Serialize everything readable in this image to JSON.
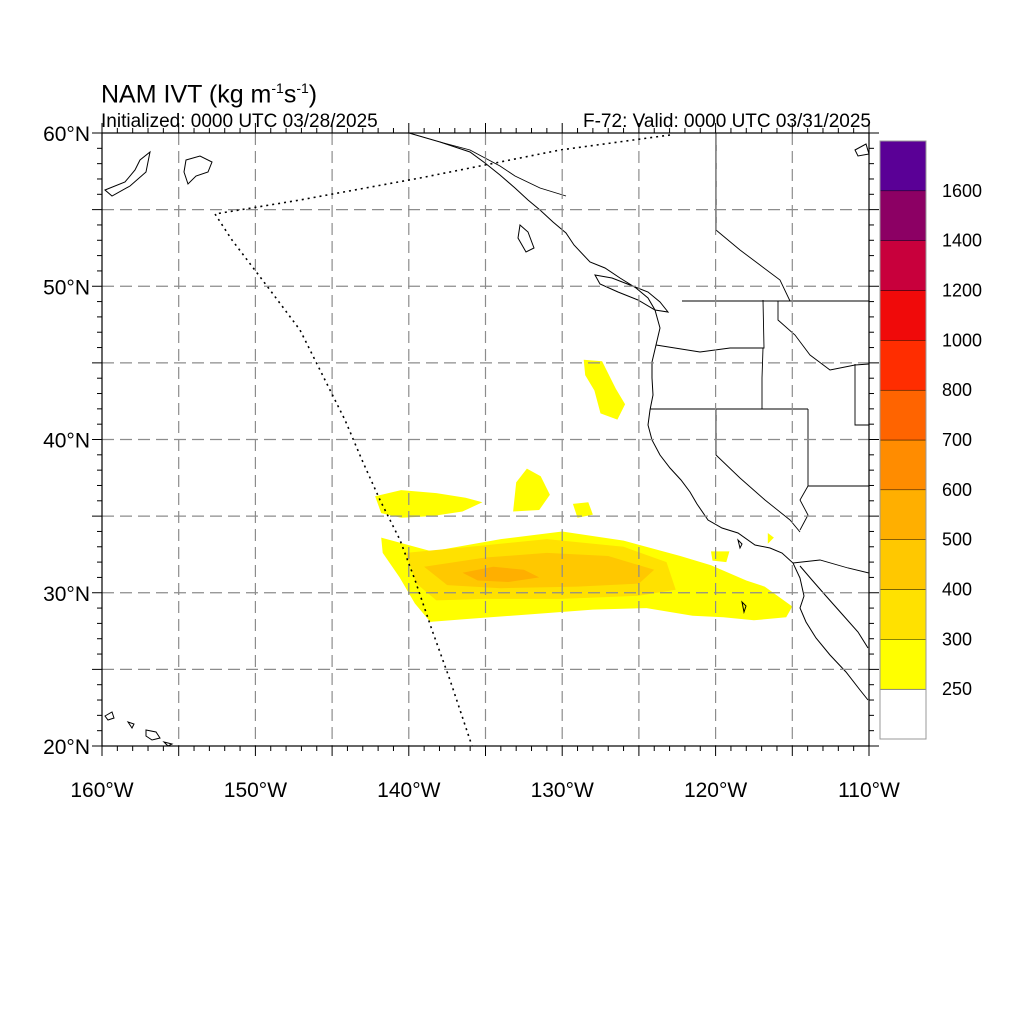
{
  "header": {
    "title_prefix": "NAM IVT (kg m",
    "title_exp1": "-1",
    "title_mid": "s",
    "title_exp2": "-1",
    "title_suffix": ")",
    "initialized": "Initialized: 0000 UTC 03/28/2025",
    "valid": "F-72: Valid: 0000 UTC 03/31/2025"
  },
  "map": {
    "lon_range": [
      -160,
      -110
    ],
    "lat_range": [
      20,
      60
    ],
    "grid": true,
    "lat_ticks": [
      {
        "lat": 60,
        "label": "60°N"
      },
      {
        "lat": 50,
        "label": "50°N"
      },
      {
        "lat": 40,
        "label": "40°N"
      },
      {
        "lat": 30,
        "label": "30°N"
      },
      {
        "lat": 20,
        "label": "20°N"
      }
    ],
    "lon_ticks": [
      {
        "lon": -160,
        "label": "160°W"
      },
      {
        "lon": -150,
        "label": "150°W"
      },
      {
        "lon": -140,
        "label": "140°W"
      },
      {
        "lon": -130,
        "label": "130°W"
      },
      {
        "lon": -120,
        "label": "120°W"
      },
      {
        "lon": -110,
        "label": "110°W"
      }
    ]
  },
  "colorbar": {
    "labels": [
      "250",
      "300",
      "400",
      "500",
      "600",
      "700",
      "800",
      "1000",
      "1200",
      "1400",
      "1600"
    ],
    "colors": [
      "#ffffff",
      "#ffff00",
      "#ffe100",
      "#ffc800",
      "#ffaf00",
      "#ff8c00",
      "#ff6400",
      "#ff2d00",
      "#f00a0a",
      "#c8003c",
      "#8c0064",
      "#5a0096"
    ]
  },
  "ivt_regions": [
    {
      "level": 1,
      "points": [
        [
          -141.8,
          33.6
        ],
        [
          -138.5,
          32.7
        ],
        [
          -134,
          33.5
        ],
        [
          -130,
          34
        ],
        [
          -126,
          33.4
        ],
        [
          -122.3,
          32.4
        ],
        [
          -120.3,
          31.8
        ],
        [
          -118,
          30.8
        ],
        [
          -116.8,
          30.4
        ],
        [
          -115,
          29.1
        ],
        [
          -115.4,
          28.4
        ],
        [
          -117.5,
          28.2
        ],
        [
          -119.5,
          28.4
        ],
        [
          -121.5,
          28.5
        ],
        [
          -124.5,
          29
        ],
        [
          -128,
          28.9
        ],
        [
          -132,
          28.6
        ],
        [
          -136,
          28.3
        ],
        [
          -138.6,
          28.1
        ],
        [
          -139.6,
          29.3
        ],
        [
          -140.6,
          31
        ],
        [
          -141.7,
          32.6
        ]
      ]
    },
    {
      "level": 2,
      "points": [
        [
          -140.2,
          32.6
        ],
        [
          -136,
          33
        ],
        [
          -131,
          33.5
        ],
        [
          -126,
          33
        ],
        [
          -123.2,
          32
        ],
        [
          -122.6,
          30.2
        ],
        [
          -125,
          29.8
        ],
        [
          -130,
          29.6
        ],
        [
          -135,
          29.6
        ],
        [
          -138.2,
          29.5
        ],
        [
          -139.5,
          30.6
        ]
      ]
    },
    {
      "level": 3,
      "points": [
        [
          -139,
          31.7
        ],
        [
          -135,
          32.3
        ],
        [
          -131,
          32.6
        ],
        [
          -127,
          32.4
        ],
        [
          -124,
          31.5
        ],
        [
          -125,
          30.6
        ],
        [
          -129,
          30.4
        ],
        [
          -134,
          30.3
        ],
        [
          -137.5,
          30.5
        ]
      ]
    },
    {
      "level": 4,
      "points": [
        [
          -136.5,
          31.3
        ],
        [
          -134.5,
          31.7
        ],
        [
          -132.5,
          31.5
        ],
        [
          -131.5,
          31
        ],
        [
          -133.5,
          30.7
        ],
        [
          -135.5,
          30.8
        ]
      ]
    },
    {
      "level": 1,
      "points": [
        [
          -142.2,
          36.3
        ],
        [
          -140.5,
          36.7
        ],
        [
          -138.2,
          36.5
        ],
        [
          -136.3,
          36.2
        ],
        [
          -135.2,
          35.9
        ],
        [
          -136.5,
          35.3
        ],
        [
          -138.5,
          35
        ],
        [
          -140.5,
          34.9
        ],
        [
          -141.8,
          35.2
        ]
      ]
    },
    {
      "level": 1,
      "points": [
        [
          -133.2,
          35.3
        ],
        [
          -131.5,
          35.4
        ],
        [
          -130.8,
          36.4
        ],
        [
          -131.4,
          37.6
        ],
        [
          -132.3,
          38.1
        ],
        [
          -133,
          37.2
        ]
      ]
    },
    {
      "level": 1,
      "points": [
        [
          -129.3,
          35.8
        ],
        [
          -128.3,
          35.9
        ],
        [
          -128,
          35.1
        ],
        [
          -129,
          34.9
        ]
      ]
    },
    {
      "level": 1,
      "points": [
        [
          -128.6,
          45.2
        ],
        [
          -127.4,
          45.1
        ],
        [
          -126.5,
          43.3
        ],
        [
          -125.9,
          42.3
        ],
        [
          -126.4,
          41.3
        ],
        [
          -127.5,
          41.7
        ],
        [
          -127.9,
          43.2
        ],
        [
          -128.5,
          44.2
        ]
      ]
    },
    {
      "level": 1,
      "points": [
        [
          -120.3,
          32.7
        ],
        [
          -119.1,
          32.7
        ],
        [
          -119.3,
          32
        ],
        [
          -120.2,
          32.1
        ]
      ]
    },
    {
      "level": 1,
      "points": [
        [
          -116.6,
          33.9
        ],
        [
          -116.2,
          33.6
        ],
        [
          -116.6,
          33.2
        ]
      ]
    }
  ]
}
